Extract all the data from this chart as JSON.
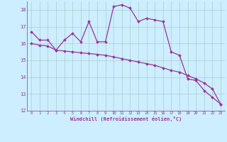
{
  "xlabel": "Windchill (Refroidissement éolien,°C)",
  "x": [
    0,
    1,
    2,
    3,
    4,
    5,
    6,
    7,
    8,
    9,
    10,
    11,
    12,
    13,
    14,
    15,
    16,
    17,
    18,
    19,
    20,
    21,
    22,
    23
  ],
  "line1": [
    16.7,
    16.2,
    16.2,
    15.6,
    16.2,
    16.6,
    16.1,
    17.3,
    16.1,
    16.1,
    18.2,
    18.3,
    18.1,
    17.3,
    17.5,
    17.4,
    17.3,
    15.5,
    15.3,
    13.9,
    13.8,
    13.2,
    12.8,
    12.4
  ],
  "line2": [
    16.0,
    15.9,
    15.85,
    15.6,
    15.55,
    15.5,
    15.45,
    15.4,
    15.35,
    15.3,
    15.2,
    15.1,
    15.0,
    14.9,
    14.8,
    14.7,
    14.55,
    14.4,
    14.3,
    14.1,
    13.9,
    13.65,
    13.3,
    12.4
  ],
  "color": "#993399",
  "bg_color": "#cceeff",
  "grid_color": "#aacccc",
  "ylim": [
    12,
    18.5
  ],
  "yticks": [
    12,
    13,
    14,
    15,
    16,
    17,
    18
  ],
  "xlim": [
    -0.5,
    23.5
  ]
}
